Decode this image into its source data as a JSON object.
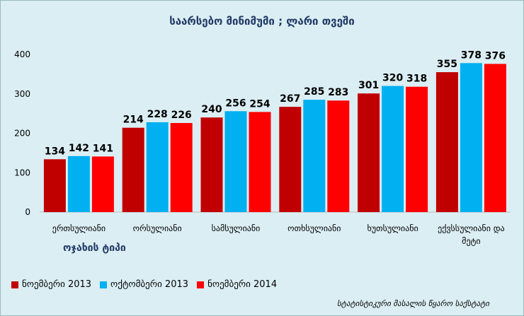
{
  "chart_data": {
    "type": "bar",
    "title": "საარსებო მინიმუმი ; ლარი თვეში",
    "xlabel": "ოჯახის ტიპი",
    "ylabel": "",
    "ylim": [
      0,
      400
    ],
    "yticks": [
      0,
      100,
      200,
      300,
      400
    ],
    "grid": false,
    "legend_position": "bottom-left",
    "categories": [
      "ერთსულიანი",
      "ორსულიანი",
      "სამსულიანი",
      "ოთხსულიანი",
      "ხუთსულიანი",
      "ექვსსულიანი და მეტი"
    ],
    "series": [
      {
        "name": "ნოემბერი 2013",
        "color": "#C00000",
        "values": [
          134,
          214,
          240,
          267,
          301,
          355
        ]
      },
      {
        "name": "ოქტომბერი 2013",
        "color": "#00B0F0",
        "values": [
          142,
          228,
          256,
          285,
          320,
          378
        ]
      },
      {
        "name": "ნოემბერი 2014",
        "color": "#FF0000",
        "values": [
          141,
          226,
          254,
          283,
          318,
          376
        ]
      }
    ]
  },
  "source": "სტატისტიკური მასალის წყარო საქსტატი"
}
